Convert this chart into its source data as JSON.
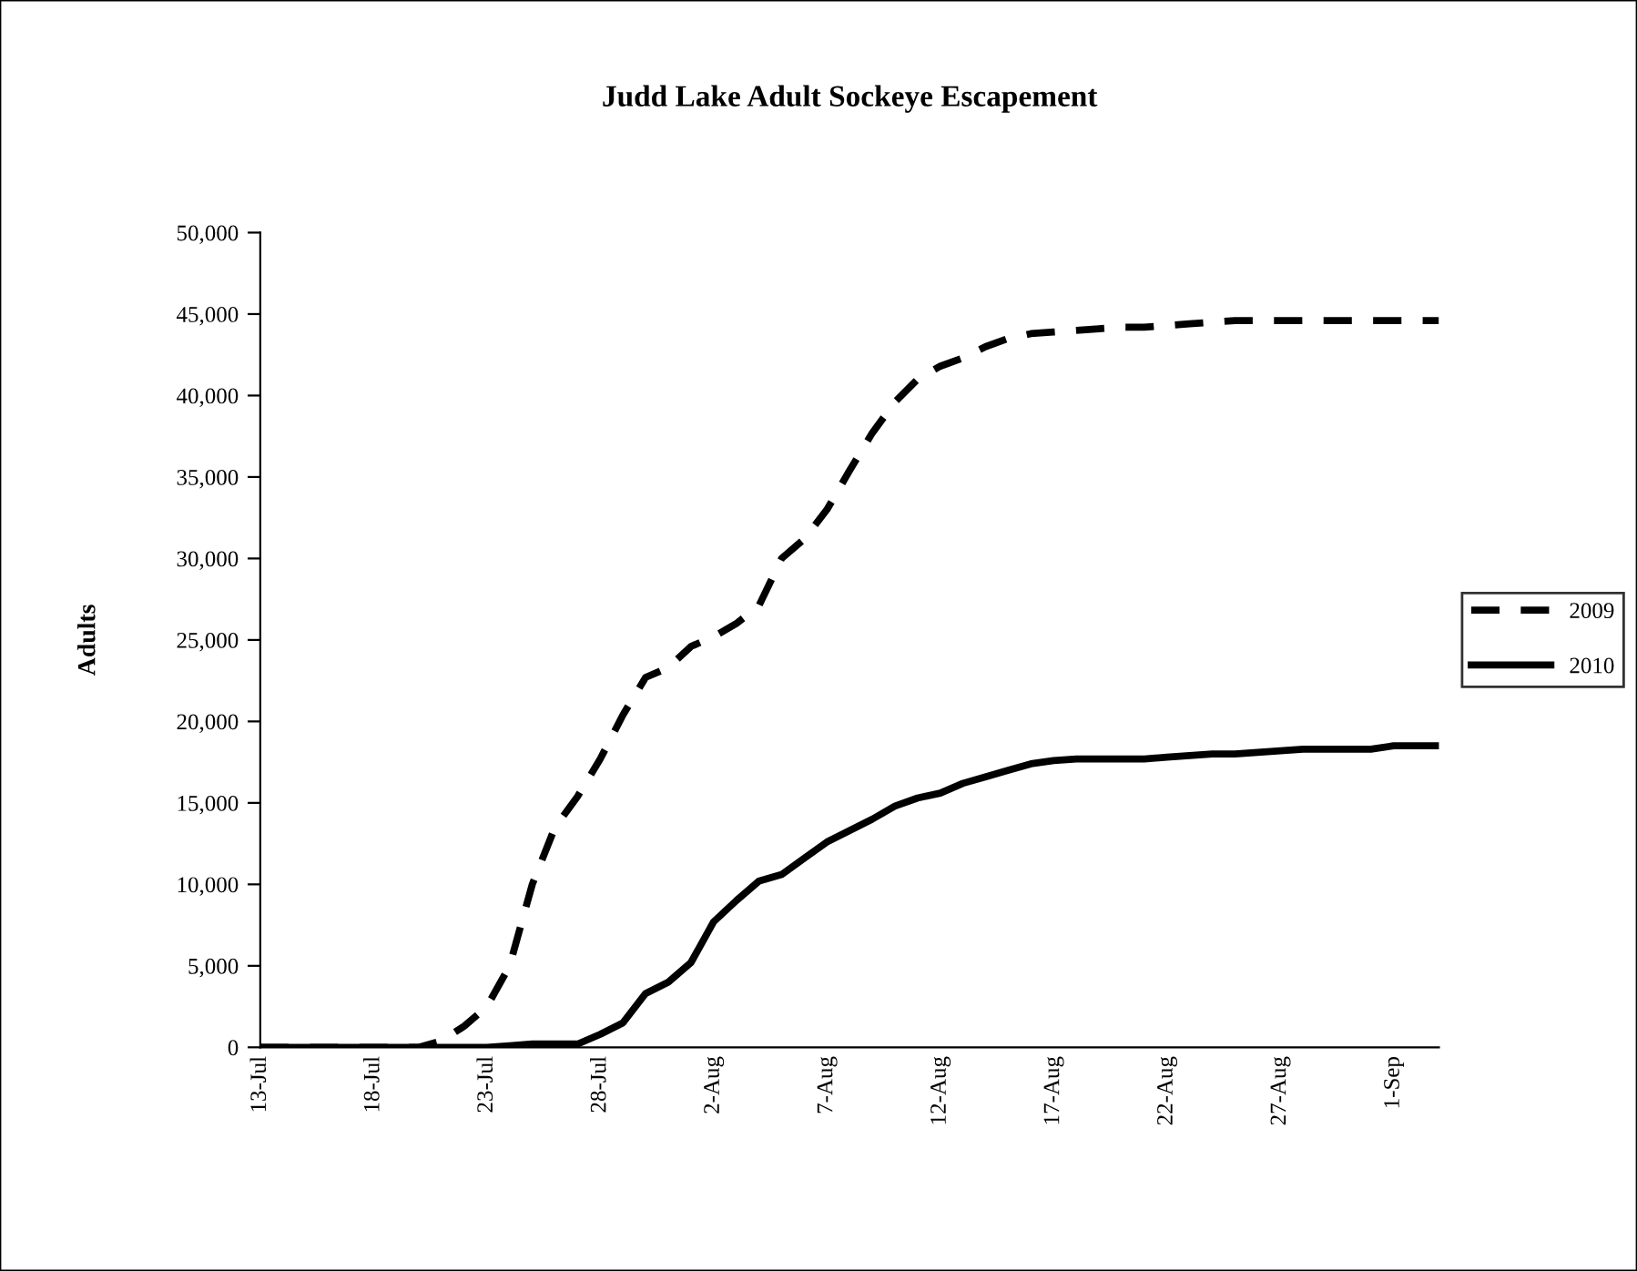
{
  "chart_data": {
    "type": "line",
    "title": "Judd Lake Adult Sockeye Escapement",
    "ylabel": "Adults",
    "categories": [
      "13-Jul",
      null,
      null,
      null,
      null,
      "18-Jul",
      null,
      null,
      null,
      null,
      "23-Jul",
      null,
      null,
      null,
      null,
      "28-Jul",
      null,
      null,
      null,
      null,
      "2-Aug",
      null,
      null,
      null,
      null,
      "7-Aug",
      null,
      null,
      null,
      null,
      "12-Aug",
      null,
      null,
      null,
      null,
      "17-Aug",
      null,
      null,
      null,
      null,
      "22-Aug",
      null,
      null,
      null,
      null,
      "27-Aug",
      null,
      null,
      null,
      null,
      "1-Sep",
      null,
      null
    ],
    "series": [
      {
        "name": "2009",
        "color": "#000000",
        "line_style": "dashed",
        "values": [
          0,
          0,
          0,
          0,
          0,
          0,
          0,
          0,
          400,
          1300,
          2500,
          5000,
          10000,
          13500,
          15400,
          17700,
          20400,
          22700,
          23300,
          24600,
          25200,
          26000,
          27100,
          30000,
          31200,
          33000,
          35400,
          37700,
          39600,
          41000,
          41800,
          42300,
          43000,
          43500,
          43800,
          43900,
          44000,
          44100,
          44200,
          44200,
          44300,
          44400,
          44500,
          44600,
          44600,
          44600,
          44600,
          44600,
          44600,
          44600,
          44600,
          44600,
          44600
        ]
      },
      {
        "name": "2010",
        "color": "#000000",
        "line_style": "solid",
        "values": [
          0,
          0,
          0,
          0,
          0,
          0,
          0,
          0,
          0,
          0,
          0,
          100,
          200,
          200,
          200,
          800,
          1500,
          3300,
          4000,
          5200,
          7700,
          9000,
          10200,
          10600,
          11600,
          12600,
          13300,
          14000,
          14800,
          15300,
          15600,
          16200,
          16600,
          17000,
          17400,
          17600,
          17700,
          17700,
          17700,
          17700,
          17800,
          17900,
          18000,
          18000,
          18100,
          18200,
          18300,
          18300,
          18300,
          18300,
          18500,
          18500,
          18500
        ]
      }
    ],
    "ylim": [
      0,
      50000
    ],
    "yticks": [
      0,
      {
        "value": 5000,
        "label": "5,000"
      },
      {
        "value": 10000,
        "label": "10,000"
      },
      {
        "value": 15000,
        "label": "15,000"
      },
      {
        "value": 20000,
        "label": "20,000"
      },
      {
        "value": 25000,
        "label": "25,000"
      },
      {
        "value": 30000,
        "label": "30,000"
      },
      {
        "value": 35000,
        "label": "35,000"
      },
      {
        "value": 40000,
        "label": "40,000"
      },
      {
        "value": 45000,
        "label": "45,000"
      },
      {
        "value": 50000,
        "label": "50,000"
      }
    ],
    "grid": false,
    "legend": "right",
    "marker": "none"
  }
}
